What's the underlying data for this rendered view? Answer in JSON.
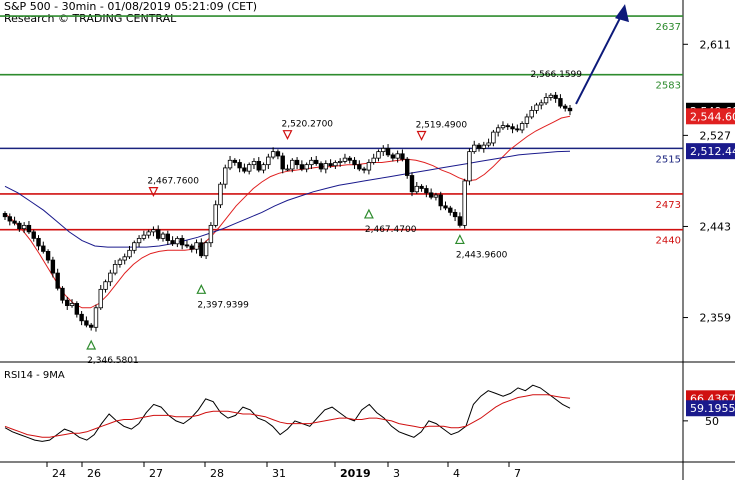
{
  "header": {
    "title": "S&P 500 - 30min - 01/08/2019 05:21:09 (CET)",
    "source": "Research © TRADING CENTRAL"
  },
  "colors": {
    "candle": "#000000",
    "ma_fast": "#e02020",
    "ma_slow": "#1a1a8c",
    "resistance": "#2e8b2e",
    "support": "#d01010",
    "pivot": "#1a237e",
    "arrow": "#0d1a7a",
    "signal_up": "#2e8b2e",
    "signal_down": "#d01010",
    "rsi": "#000000",
    "rsi_ma": "#d01010"
  },
  "chart_data": [
    {
      "type": "candlestick",
      "title": "S&P 500 - 30min - 01/08/2019 05:21:09 (CET)",
      "ylim": [
        2318,
        2650
      ],
      "y_ticks": [
        2359,
        2443,
        2527,
        2611
      ],
      "x_labels": [
        "24",
        "26",
        "27",
        "28",
        "31",
        "2019",
        "3",
        "4",
        "7"
      ],
      "levels": [
        {
          "label": "2637",
          "value": 2637,
          "role": "resistance"
        },
        {
          "label": "2583",
          "value": 2583,
          "role": "resistance"
        },
        {
          "label": "2515",
          "value": 2515,
          "role": "pivot"
        },
        {
          "label": "2473",
          "value": 2473,
          "role": "support"
        },
        {
          "label": "2440",
          "value": 2440,
          "role": "support"
        }
      ],
      "last_values": [
        {
          "label": "2,549.69",
          "value": 2549.69,
          "role": "price"
        },
        {
          "label": "2,544.60",
          "value": 2544.6,
          "role": "ma_fast"
        },
        {
          "label": "2,512.44",
          "value": 2512.44,
          "role": "ma_slow"
        }
      ],
      "annotations": [
        {
          "label": "2,346.5801",
          "value": 2346.58,
          "kind": "low"
        },
        {
          "label": "2,397.9399",
          "value": 2397.94,
          "kind": "low"
        },
        {
          "label": "2,467.7600",
          "value": 2467.76,
          "kind": "high"
        },
        {
          "label": "2,520.2700",
          "value": 2520.27,
          "kind": "high"
        },
        {
          "label": "2,467.4700",
          "value": 2467.47,
          "kind": "low"
        },
        {
          "label": "2,519.4900",
          "value": 2519.49,
          "kind": "high"
        },
        {
          "label": "2,443.9600",
          "value": 2443.96,
          "kind": "low"
        },
        {
          "label": "2,566.1599",
          "value": 2566.16,
          "kind": "high"
        }
      ],
      "projection": {
        "from": 2556,
        "to": 2648,
        "direction": "up"
      },
      "series": [
        {
          "kind": "ohlc",
          "close": [
            2452,
            2448,
            2446,
            2441,
            2444,
            2438,
            2432,
            2425,
            2420,
            2412,
            2400,
            2386,
            2375,
            2370,
            2372,
            2362,
            2356,
            2352,
            2350,
            2368,
            2385,
            2392,
            2400,
            2408,
            2412,
            2415,
            2421,
            2428,
            2432,
            2435,
            2438,
            2440,
            2432,
            2436,
            2430,
            2427,
            2432,
            2426,
            2425,
            2422,
            2428,
            2416,
            2428,
            2444,
            2463,
            2482,
            2497,
            2504,
            2502,
            2497,
            2494,
            2500,
            2503,
            2495,
            2500,
            2507,
            2512,
            2508,
            2496,
            2496,
            2504,
            2500,
            2496,
            2500,
            2504,
            2501,
            2496,
            2501,
            2499,
            2502,
            2503,
            2506,
            2504,
            2500,
            2496,
            2495,
            2502,
            2506,
            2512,
            2515,
            2509,
            2506,
            2510,
            2505,
            2490,
            2475,
            2480,
            2478,
            2474,
            2470,
            2472,
            2462,
            2460,
            2456,
            2452,
            2444,
            2485,
            2512,
            2518,
            2515,
            2518,
            2520,
            2530,
            2534,
            2536,
            2535,
            2533,
            2532,
            2538,
            2544,
            2550,
            2555,
            2557,
            2562,
            2564,
            2561,
            2554,
            2552,
            2549.69
          ],
          "ma_fast": [
            2455,
            2448,
            2440,
            2430,
            2418,
            2405,
            2392,
            2380,
            2372,
            2368,
            2368,
            2372,
            2380,
            2390,
            2400,
            2408,
            2414,
            2418,
            2420,
            2421,
            2421,
            2421,
            2422,
            2426,
            2433,
            2442,
            2452,
            2462,
            2470,
            2478,
            2484,
            2489,
            2492,
            2494,
            2495,
            2496,
            2497,
            2498,
            2498,
            2499,
            2500,
            2500,
            2501,
            2502,
            2502,
            2503,
            2504,
            2505,
            2504,
            2502,
            2499,
            2495,
            2492,
            2488,
            2485,
            2486,
            2491,
            2498,
            2506,
            2514,
            2520,
            2526,
            2531,
            2535,
            2539,
            2543,
            2544.6
          ],
          "ma_slow": [
            2480,
            2474,
            2466,
            2458,
            2448,
            2438,
            2430,
            2425,
            2424,
            2424,
            2424,
            2424,
            2425,
            2427,
            2430,
            2433,
            2437,
            2441,
            2446,
            2451,
            2456,
            2462,
            2467,
            2471,
            2475,
            2478,
            2481,
            2483,
            2485,
            2487,
            2489,
            2491,
            2493,
            2495,
            2497,
            2499,
            2501,
            2503,
            2505,
            2507,
            2509,
            2510,
            2511,
            2512,
            2512.44
          ]
        }
      ]
    },
    {
      "type": "line",
      "title": "RSI14 - 9MA",
      "ylim": [
        20,
        90
      ],
      "y_ticks": [
        50
      ],
      "last_values": [
        {
          "label": "66.4367",
          "value": 66.4367,
          "role": "rsi_ma"
        },
        {
          "label": "59.1955",
          "value": 59.1955,
          "role": "rsi"
        }
      ],
      "series": [
        {
          "name": "RSI14",
          "values": [
            45,
            42,
            40,
            38,
            36,
            35,
            36,
            40,
            44,
            42,
            38,
            36,
            40,
            48,
            55,
            50,
            46,
            44,
            48,
            56,
            62,
            60,
            54,
            50,
            48,
            52,
            58,
            66,
            64,
            56,
            52,
            54,
            60,
            58,
            52,
            50,
            46,
            40,
            44,
            50,
            48,
            46,
            52,
            58,
            60,
            56,
            52,
            50,
            58,
            62,
            56,
            52,
            46,
            42,
            40,
            38,
            42,
            50,
            48,
            44,
            40,
            42,
            46,
            62,
            68,
            72,
            70,
            68,
            70,
            74,
            72,
            76,
            74,
            70,
            66,
            62,
            59.1955
          ]
        },
        {
          "name": "9MA",
          "values": [
            46,
            44,
            42,
            40,
            39,
            38,
            38,
            39,
            40,
            41,
            41,
            42,
            44,
            46,
            48,
            50,
            51,
            51,
            52,
            53,
            54,
            54,
            54,
            53,
            53,
            53,
            54,
            56,
            57,
            57,
            57,
            56,
            55,
            55,
            54,
            53,
            51,
            49,
            48,
            48,
            48,
            48,
            49,
            50,
            51,
            52,
            52,
            51,
            51,
            52,
            52,
            51,
            50,
            48,
            47,
            46,
            45,
            46,
            46,
            46,
            45,
            45,
            46,
            49,
            52,
            56,
            60,
            63,
            65,
            67,
            68,
            69,
            69,
            69,
            68,
            67,
            66.4367
          ]
        }
      ]
    }
  ]
}
